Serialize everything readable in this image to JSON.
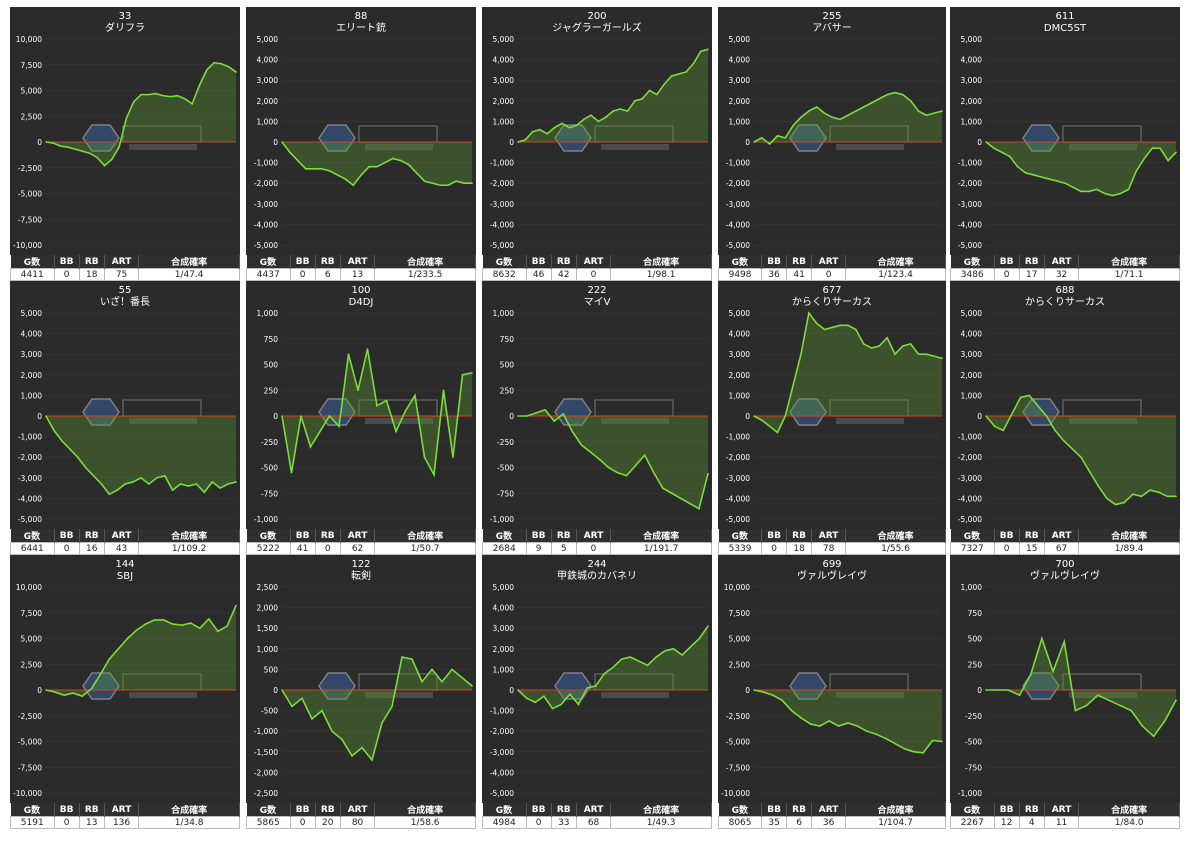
{
  "stat_headers": [
    "G数",
    "BB",
    "RB",
    "ART",
    "合成確率"
  ],
  "colors": {
    "background": "#2b2b2b",
    "line": "#7ddc3a",
    "fill": "#5a9a30",
    "zero": "#d9401a",
    "text": "#ffffff",
    "grid": "#3a3a3a"
  },
  "chart_data": [
    {
      "type": "area",
      "title": "33",
      "subtitle": "ダリフラ",
      "ylim": [
        -10000,
        10000
      ],
      "yticks": [
        "10,000",
        "7,500",
        "5,000",
        "2,500",
        "0",
        "-2,500",
        "-5,000",
        "-7,500",
        "-10,000"
      ],
      "values": [
        0,
        -100,
        -400,
        -500,
        -700,
        -900,
        -1100,
        -1500,
        -2300,
        -1700,
        -500,
        2300,
        3900,
        4600,
        4600,
        4700,
        4500,
        4400,
        4500,
        4200,
        3700,
        5500,
        7000,
        7700,
        7600,
        7300,
        6800
      ],
      "stats": [
        "4411",
        "0",
        "18",
        "75",
        "1/47.4"
      ]
    },
    {
      "type": "area",
      "title": "88",
      "subtitle": "エリート銃",
      "ylim": [
        -5000,
        5000
      ],
      "yticks": [
        "5,000",
        "4,000",
        "3,000",
        "2,000",
        "1,000",
        "0",
        "-1,000",
        "-2,000",
        "-3,000",
        "-4,000",
        "-5,000"
      ],
      "values": [
        0,
        -500,
        -900,
        -1300,
        -1300,
        -1300,
        -1400,
        -1600,
        -1800,
        -2100,
        -1600,
        -1200,
        -1200,
        -1000,
        -800,
        -900,
        -1100,
        -1500,
        -1900,
        -2000,
        -2100,
        -2100,
        -1900,
        -2000,
        -2000
      ],
      "stats": [
        "4437",
        "0",
        "6",
        "13",
        "1/233.5"
      ]
    },
    {
      "type": "area",
      "title": "200",
      "subtitle": "ジャグラーガールズ",
      "ylim": [
        -5000,
        5000
      ],
      "yticks": [
        "5,000",
        "4,000",
        "3,000",
        "2,000",
        "1,000",
        "0",
        "-1,000",
        "-2,000",
        "-3,000",
        "-4,000",
        "-5,000"
      ],
      "values": [
        0,
        100,
        500,
        600,
        400,
        700,
        900,
        700,
        800,
        1100,
        1300,
        1000,
        1200,
        1500,
        1600,
        1500,
        2000,
        2100,
        2500,
        2300,
        2800,
        3200,
        3300,
        3400,
        3800,
        4400,
        4500
      ],
      "stats": [
        "8632",
        "46",
        "42",
        "0",
        "1/98.1"
      ]
    },
    {
      "type": "area",
      "title": "255",
      "subtitle": "アバサー",
      "ylim": [
        -5000,
        5000
      ],
      "yticks": [
        "5,000",
        "4,000",
        "3,000",
        "2,000",
        "1,000",
        "0",
        "-1,000",
        "-2,000",
        "-3,000",
        "-4,000",
        "-5,000"
      ],
      "values": [
        0,
        200,
        -100,
        300,
        200,
        800,
        1200,
        1500,
        1700,
        1400,
        1200,
        1100,
        1300,
        1500,
        1700,
        1900,
        2100,
        2300,
        2400,
        2300,
        2000,
        1500,
        1300,
        1400,
        1500
      ],
      "stats": [
        "9498",
        "36",
        "41",
        "0",
        "1/123.4"
      ]
    },
    {
      "type": "area",
      "title": "611",
      "subtitle": "DMC5ST",
      "ylim": [
        -5000,
        5000
      ],
      "yticks": [
        "5,000",
        "4,000",
        "3,000",
        "2,000",
        "1,000",
        "0",
        "-1,000",
        "-2,000",
        "-3,000",
        "-4,000",
        "-5,000"
      ],
      "values": [
        0,
        -300,
        -500,
        -700,
        -1200,
        -1500,
        -1600,
        -1700,
        -1800,
        -1900,
        -2000,
        -2200,
        -2400,
        -2400,
        -2300,
        -2500,
        -2600,
        -2500,
        -2300,
        -1400,
        -800,
        -300,
        -300,
        -900,
        -500
      ],
      "stats": [
        "3486",
        "0",
        "17",
        "32",
        "1/71.1"
      ]
    },
    {
      "type": "area",
      "title": "55",
      "subtitle": "いざ！番長",
      "ylim": [
        -5000,
        5000
      ],
      "yticks": [
        "5,000",
        "4,000",
        "3,000",
        "2,000",
        "1,000",
        "0",
        "-1,000",
        "-2,000",
        "-3,000",
        "-4,000",
        "-5,000"
      ],
      "values": [
        0,
        -700,
        -1200,
        -1600,
        -2000,
        -2500,
        -2900,
        -3300,
        -3800,
        -3600,
        -3300,
        -3200,
        -3000,
        -3300,
        -3000,
        -2900,
        -3600,
        -3300,
        -3400,
        -3300,
        -3700,
        -3200,
        -3500,
        -3300,
        -3200
      ],
      "stats": [
        "6441",
        "0",
        "16",
        "43",
        "1/109.2"
      ]
    },
    {
      "type": "area",
      "title": "100",
      "subtitle": "D4DJ",
      "ylim": [
        -1000,
        1000
      ],
      "yticks": [
        "1,000",
        "750",
        "500",
        "250",
        "0",
        "-250",
        "-500",
        "-750",
        "-1,000"
      ],
      "values": [
        0,
        -550,
        0,
        -300,
        -150,
        0,
        -100,
        600,
        250,
        650,
        100,
        150,
        -150,
        50,
        200,
        -400,
        -570,
        250,
        -400,
        400,
        420
      ],
      "stats": [
        "5222",
        "41",
        "0",
        "62",
        "1/50.7"
      ]
    },
    {
      "type": "area",
      "title": "222",
      "subtitle": "マイV",
      "ylim": [
        -1000,
        1000
      ],
      "yticks": [
        "1,000",
        "750",
        "500",
        "250",
        "0",
        "-250",
        "-500",
        "-750",
        "-1,000"
      ],
      "values": [
        0,
        0,
        30,
        60,
        -50,
        20,
        -150,
        -280,
        -350,
        -420,
        -500,
        -550,
        -580,
        -480,
        -380,
        -550,
        -700,
        -750,
        -800,
        -850,
        -900,
        -560
      ],
      "stats": [
        "2684",
        "9",
        "5",
        "0",
        "1/191.7"
      ]
    },
    {
      "type": "area",
      "title": "677",
      "subtitle": "からくりサーカス",
      "ylim": [
        -5000,
        5000
      ],
      "yticks": [
        "5,000",
        "4,000",
        "3,000",
        "2,000",
        "1,000",
        "0",
        "-1,000",
        "-2,000",
        "-3,000",
        "-4,000",
        "-5,000"
      ],
      "values": [
        0,
        -200,
        -500,
        -800,
        0,
        1500,
        3000,
        5000,
        4500,
        4200,
        4300,
        4400,
        4400,
        4200,
        3500,
        3300,
        3400,
        3800,
        3000,
        3400,
        3500,
        3000,
        3000,
        2900,
        2800
      ],
      "stats": [
        "5339",
        "0",
        "18",
        "78",
        "1/55.6"
      ]
    },
    {
      "type": "area",
      "title": "688",
      "subtitle": "からくりサーカス",
      "ylim": [
        -5000,
        5000
      ],
      "yticks": [
        "5,000",
        "4,000",
        "3,000",
        "2,000",
        "1,000",
        "0",
        "-1,000",
        "-2,000",
        "-3,000",
        "-4,000",
        "-5,000"
      ],
      "values": [
        0,
        -500,
        -700,
        100,
        900,
        1000,
        500,
        0,
        -700,
        -1200,
        -1600,
        -2000,
        -2700,
        -3400,
        -4000,
        -4300,
        -4200,
        -3800,
        -3900,
        -3600,
        -3700,
        -3900,
        -3900
      ],
      "stats": [
        "7327",
        "0",
        "15",
        "67",
        "1/89.4"
      ]
    },
    {
      "type": "area",
      "title": "144",
      "subtitle": "SBJ",
      "ylim": [
        -10000,
        10000
      ],
      "yticks": [
        "10,000",
        "7,500",
        "5,000",
        "2,500",
        "0",
        "-2,500",
        "-5,000",
        "-7,500",
        "-10,000"
      ],
      "values": [
        0,
        -200,
        -500,
        -300,
        -600,
        100,
        1500,
        3000,
        4000,
        5000,
        5800,
        6400,
        6800,
        6800,
        6400,
        6300,
        6500,
        6000,
        6900,
        5700,
        6200,
        8200
      ],
      "stats": [
        "5191",
        "0",
        "13",
        "136",
        "1/34.8"
      ]
    },
    {
      "type": "area",
      "title": "122",
      "subtitle": "転剣",
      "ylim": [
        -2500,
        2500
      ],
      "yticks": [
        "2,500",
        "2,000",
        "1,500",
        "1,000",
        "500",
        "0",
        "-500",
        "-1,000",
        "-1,500",
        "-2,000",
        "-2,500"
      ],
      "values": [
        0,
        -400,
        -200,
        -700,
        -500,
        -1000,
        -1200,
        -1600,
        -1400,
        -1700,
        -800,
        -400,
        800,
        750,
        200,
        500,
        200,
        500,
        300,
        100
      ],
      "stats": [
        "5865",
        "0",
        "20",
        "80",
        "1/58.6"
      ]
    },
    {
      "type": "area",
      "title": "244",
      "subtitle": "甲鉄城のカバネリ",
      "ylim": [
        -5000,
        5000
      ],
      "yticks": [
        "5,000",
        "4,000",
        "3,000",
        "2,000",
        "1,000",
        "0",
        "-1,000",
        "-2,000",
        "-3,000",
        "-4,000",
        "-5,000"
      ],
      "values": [
        0,
        -400,
        -600,
        -300,
        -900,
        -700,
        -200,
        -700,
        100,
        200,
        800,
        1100,
        1500,
        1600,
        1400,
        1200,
        1600,
        1900,
        2000,
        1700,
        2100,
        2500,
        3100
      ],
      "stats": [
        "4984",
        "0",
        "33",
        "68",
        "1/49.3"
      ]
    },
    {
      "type": "area",
      "title": "699",
      "subtitle": "ヴァルヴレイヴ",
      "ylim": [
        -10000,
        10000
      ],
      "yticks": [
        "10,000",
        "7,500",
        "5,000",
        "2,500",
        "0",
        "-2,500",
        "-5,000",
        "-7,500",
        "-10,000"
      ],
      "values": [
        0,
        -200,
        -500,
        -1000,
        -2000,
        -2700,
        -3300,
        -3500,
        -3000,
        -3500,
        -3200,
        -3500,
        -4000,
        -4300,
        -4700,
        -5200,
        -5700,
        -6000,
        -6100,
        -4900,
        -5000
      ],
      "stats": [
        "8065",
        "35",
        "6",
        "36",
        "1/104.7"
      ]
    },
    {
      "type": "area",
      "title": "700",
      "subtitle": "ヴァルヴレイヴ",
      "ylim": [
        -1000,
        1000
      ],
      "yticks": [
        "1,000",
        "750",
        "500",
        "250",
        "0",
        "-250",
        "-500",
        "-750",
        "-1,000"
      ],
      "values": [
        0,
        0,
        0,
        -50,
        150,
        500,
        180,
        470,
        -200,
        -150,
        -50,
        -100,
        -150,
        -200,
        -350,
        -450,
        -300,
        -100
      ],
      "stats": [
        "2267",
        "12",
        "4",
        "11",
        "1/84.0"
      ]
    }
  ]
}
